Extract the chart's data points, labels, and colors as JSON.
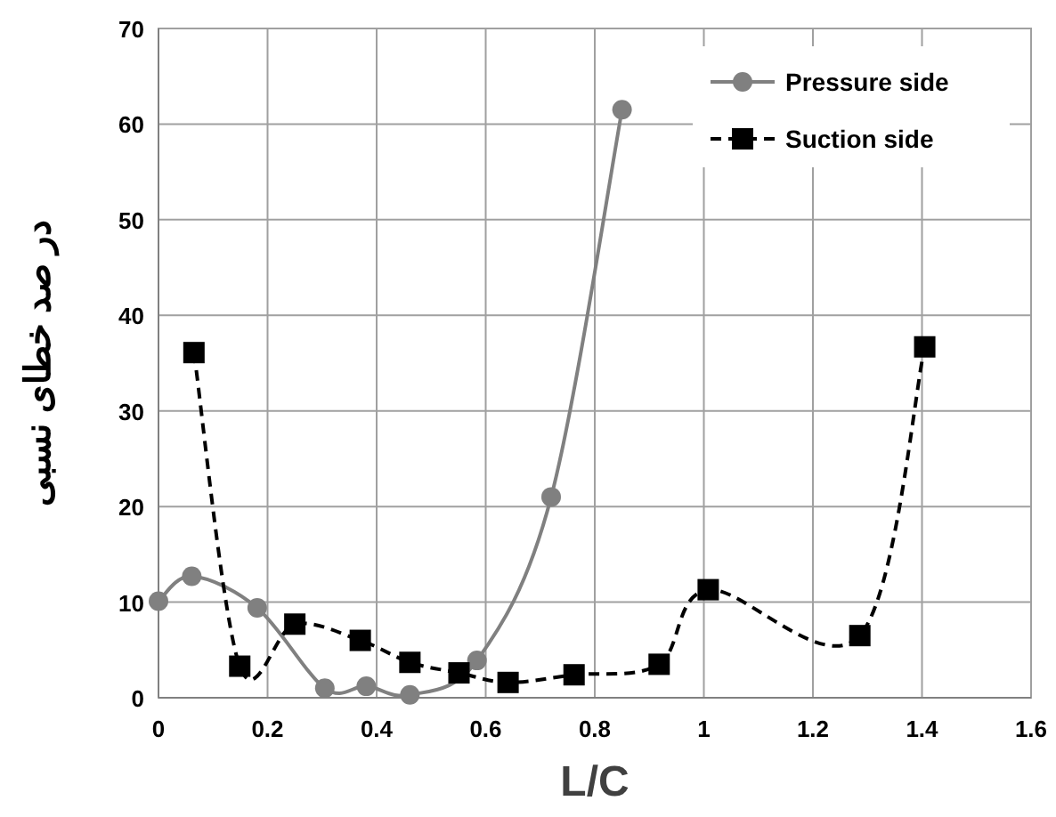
{
  "chart_data": {
    "type": "line",
    "xlabel": "L/C",
    "ylabel": "در صد خطای نسبی",
    "xlim": [
      0,
      1.6
    ],
    "xticks": [
      0,
      0.2,
      0.4,
      0.6,
      0.8,
      1,
      1.2,
      1.4,
      1.6
    ],
    "ylim": [
      0,
      70
    ],
    "yticks": [
      0,
      10,
      20,
      30,
      40,
      50,
      60,
      70
    ],
    "grid": true,
    "legend": "top right",
    "series": [
      {
        "name": "Pressure side",
        "color": "#808080",
        "marker": "circle",
        "line_style": "solid",
        "x": [
          0,
          0.061,
          0.181,
          0.305,
          0.381,
          0.461,
          0.584,
          0.72,
          0.85
        ],
        "values": [
          10.1,
          12.7,
          9.4,
          1.0,
          1.2,
          0.3,
          3.9,
          21,
          61.5
        ]
      },
      {
        "name": "Suction side",
        "color": "#000000",
        "marker": "square",
        "line_style": "dashed",
        "x": [
          0.065,
          0.149,
          0.25,
          0.37,
          0.461,
          0.551,
          0.641,
          0.762,
          0.918,
          1.008,
          1.286,
          1.405
        ],
        "values": [
          36.1,
          3.3,
          7.7,
          6.0,
          3.7,
          2.6,
          1.6,
          2.4,
          3.5,
          11.3,
          6.5,
          36.7
        ]
      }
    ]
  }
}
